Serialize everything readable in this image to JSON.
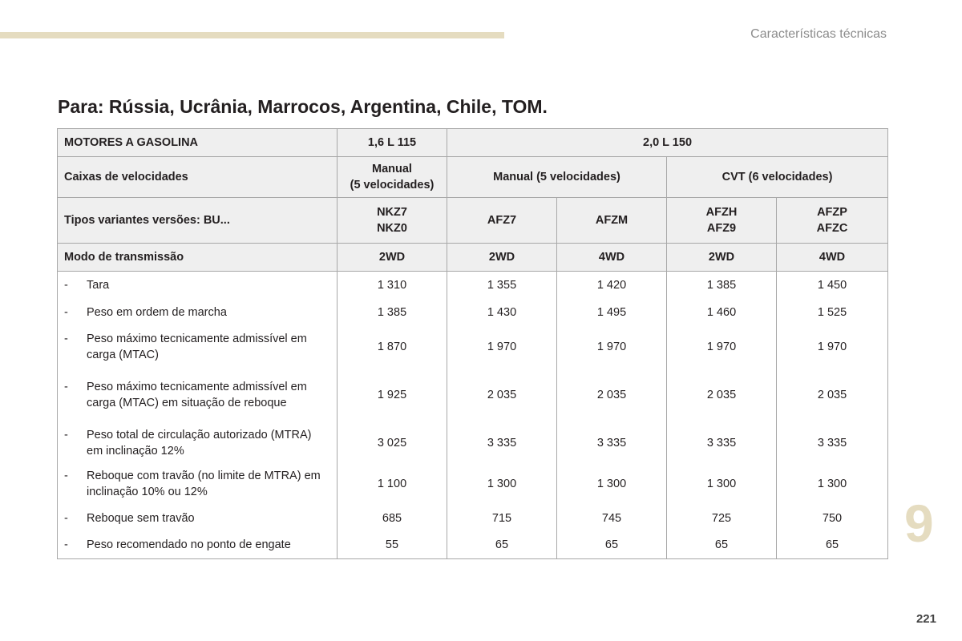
{
  "header": {
    "section_title": "Características técnicas"
  },
  "page": {
    "heading": "Para: Rússia, Ucrânia, Marrocos, Argentina, Chile, TOM.",
    "chapter": "9",
    "number": "221"
  },
  "table": {
    "engine_row": {
      "label": "MOTORES A GASOLINA",
      "engine1": "1,6 L 115",
      "engine2": "2,0 L 150"
    },
    "gearbox_row": {
      "label": "Caixas de velocidades",
      "g1_line1": "Manual",
      "g1_line2": "(5 velocidades)",
      "g2": "Manual (5 velocidades)",
      "g3": "CVT (6 velocidades)"
    },
    "variants_row": {
      "label": "Tipos variantes versões: BU...",
      "cols": [
        {
          "l1": "NKZ7",
          "l2": "NKZ0"
        },
        {
          "l1": "AFZ7",
          "l2": ""
        },
        {
          "l1": "AFZM",
          "l2": ""
        },
        {
          "l1": "AFZH",
          "l2": "AFZ9"
        },
        {
          "l1": "AFZP",
          "l2": "AFZC"
        }
      ]
    },
    "transmission_row": {
      "label": "Modo de transmissão",
      "values": [
        "2WD",
        "2WD",
        "4WD",
        "2WD",
        "4WD"
      ]
    },
    "rows": [
      {
        "dash": "-",
        "label": "Tara",
        "values": [
          "1 310",
          "1 355",
          "1 420",
          "1 385",
          "1 450"
        ]
      },
      {
        "dash": "-",
        "label": "Peso em ordem de marcha",
        "values": [
          "1 385",
          "1 430",
          "1 495",
          "1 460",
          "1 525"
        ]
      },
      {
        "dash": "-",
        "label": "Peso máximo tecnicamente admissível em carga (MTAC)",
        "values": [
          "1 870",
          "1 970",
          "1 970",
          "1 970",
          "1 970"
        ]
      },
      {
        "dash": "-",
        "label": "Peso máximo tecnicamente admissível em carga (MTAC) em situação de reboque",
        "values": [
          "1 925",
          "2 035",
          "2 035",
          "2 035",
          "2 035"
        ]
      },
      {
        "dash": "-",
        "label": "Peso total de circulação autorizado (MTRA) em inclinação 12%",
        "values": [
          "3 025",
          "3 335",
          "3 335",
          "3 335",
          "3 335"
        ]
      },
      {
        "dash": "-",
        "label": "Reboque com travão (no limite de MTRA) em inclinação 10% ou 12%",
        "values": [
          "1 100",
          "1 300",
          "1 300",
          "1 300",
          "1 300"
        ]
      },
      {
        "dash": "-",
        "label": "Reboque sem travão",
        "values": [
          "685",
          "715",
          "745",
          "725",
          "750"
        ]
      },
      {
        "dash": "-",
        "label": "Peso recomendado no ponto de engate",
        "values": [
          "55",
          "65",
          "65",
          "65",
          "65"
        ]
      }
    ]
  }
}
